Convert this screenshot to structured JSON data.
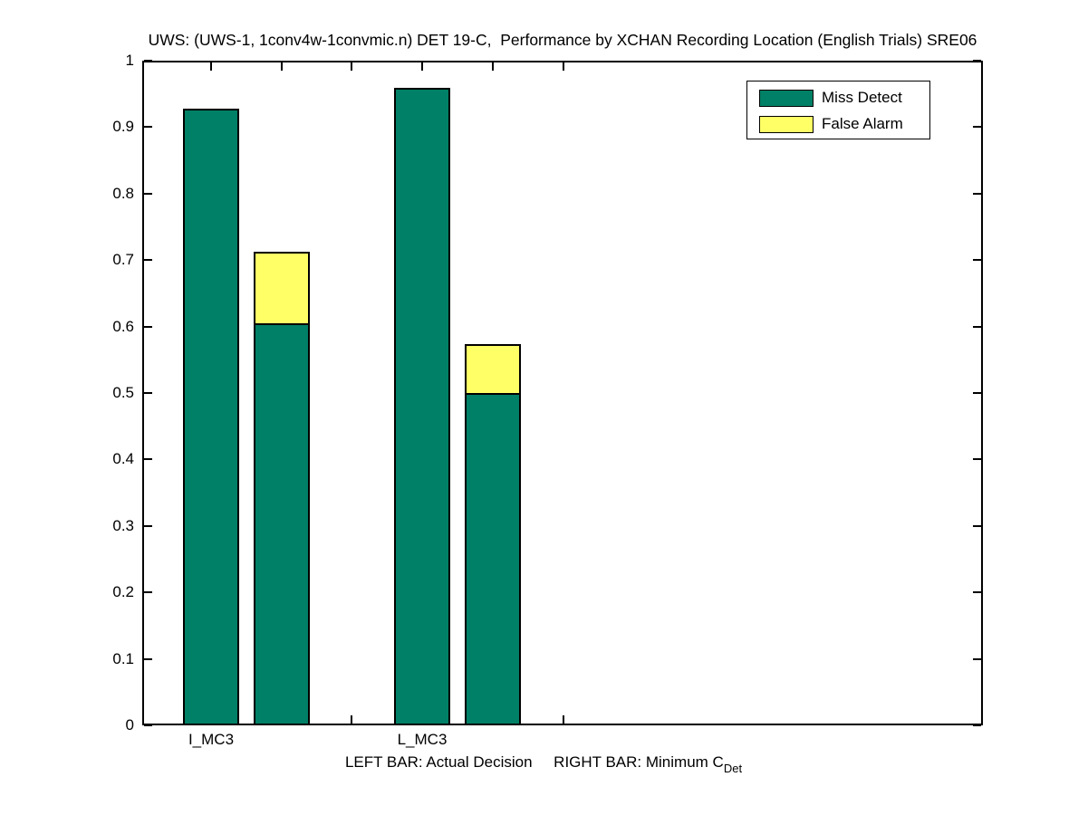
{
  "chart_data": {
    "type": "bar",
    "stacked": true,
    "title": "UWS: (UWS-1, 1conv4w-1convmic.n) DET 19-C,  Performance by XCHAN Recording Location (English Trials) SRE06",
    "categories": [
      "I_MC3",
      "L_MC3"
    ],
    "groups": [
      {
        "category": "I_MC3",
        "actual": {
          "miss_detect": 0.928,
          "false_alarm": 0.0
        },
        "minimum": {
          "miss_detect": 0.605,
          "false_alarm": 0.107
        }
      },
      {
        "category": "L_MC3",
        "actual": {
          "miss_detect": 0.959,
          "false_alarm": 0.0
        },
        "minimum": {
          "miss_detect": 0.5,
          "false_alarm": 0.073
        }
      }
    ],
    "ylim": [
      0,
      1
    ],
    "yticks": [
      0,
      0.1,
      0.2,
      0.3,
      0.4,
      0.5,
      0.6,
      0.7,
      0.8,
      0.9,
      1
    ],
    "ytick_labels": [
      "0",
      "0.1",
      "0.2",
      "0.3",
      "0.4",
      "0.5",
      "0.6",
      "0.7",
      "0.8",
      "0.9",
      "1"
    ],
    "grid": false,
    "legend_position": "top-right",
    "legend": [
      {
        "label": "Miss Detect",
        "color": "#008066"
      },
      {
        "label": "False Alarm",
        "color": "#ffff66"
      }
    ],
    "xlabel": {
      "left": "LEFT BAR: Actual Decision",
      "right": "RIGHT BAR: Minimum C",
      "right_sub": "Det"
    }
  }
}
